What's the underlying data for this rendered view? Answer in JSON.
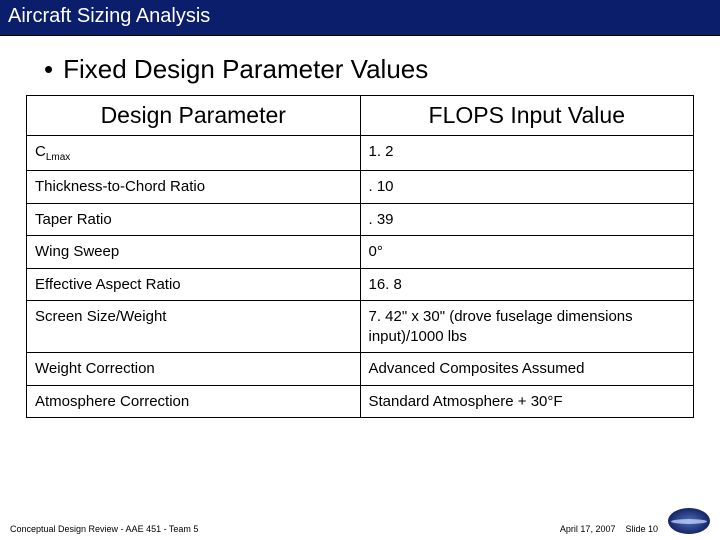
{
  "titlebar": {
    "text": "Aircraft Sizing Analysis"
  },
  "heading": {
    "bullet": "•",
    "text": "Fixed Design Parameter Values"
  },
  "table": {
    "headers": {
      "param": "Design Parameter",
      "value": "FLOPS Input Value"
    },
    "rows": [
      {
        "param_pre": "C",
        "param_sub": "Lmax",
        "param_post": "",
        "value": "1. 2"
      },
      {
        "param_pre": "Thickness-to-Chord Ratio",
        "param_sub": "",
        "param_post": "",
        "value": ". 10"
      },
      {
        "param_pre": "Taper Ratio",
        "param_sub": "",
        "param_post": "",
        "value": ". 39"
      },
      {
        "param_pre": "Wing Sweep",
        "param_sub": "",
        "param_post": "",
        "value": "0°"
      },
      {
        "param_pre": "Effective Aspect Ratio",
        "param_sub": "",
        "param_post": "",
        "value": "16. 8"
      },
      {
        "param_pre": "Screen Size/Weight",
        "param_sub": "",
        "param_post": "",
        "value": "7. 42\" x 30\" (drove fuselage dimensions input)/1000 lbs"
      },
      {
        "param_pre": "Weight Correction",
        "param_sub": "",
        "param_post": "",
        "value": "Advanced Composites Assumed"
      },
      {
        "param_pre": "Atmosphere Correction",
        "param_sub": "",
        "param_post": "",
        "value": "Standard Atmosphere + 30°F"
      }
    ]
  },
  "footer": {
    "left": "Conceptual Design Review - AAE 451 - Team 5",
    "date": "April 17, 2007",
    "slide": "Slide 10"
  },
  "colors": {
    "titlebar_bg": "#0b1e6b",
    "titlebar_fg": "#ffffff",
    "border": "#000000",
    "page_bg": "#ffffff"
  }
}
